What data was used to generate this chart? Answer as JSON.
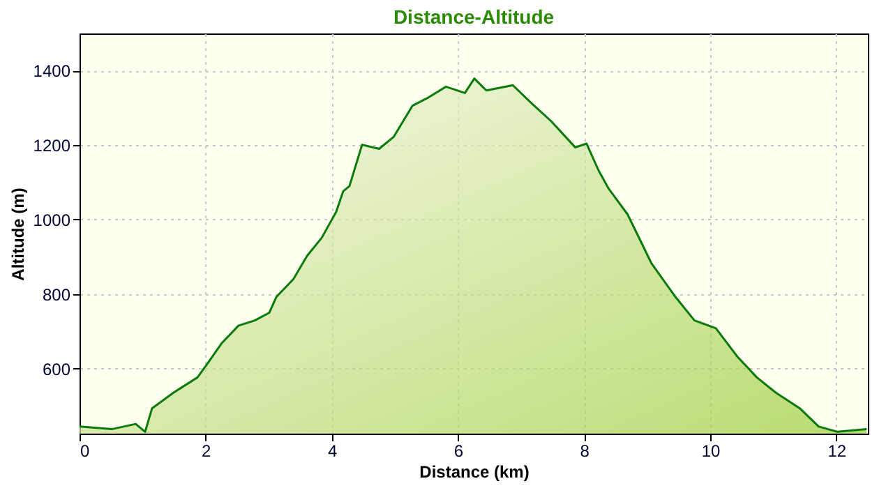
{
  "chart_data": {
    "type": "area",
    "title": "Distance-Altitude",
    "xlabel": "Distance (km)",
    "ylabel": "Altitude (m)",
    "x": [
      0,
      0.51,
      0.89,
      1.04,
      1.15,
      1.49,
      1.87,
      2.02,
      2.25,
      2.52,
      2.78,
      3.01,
      3.12,
      3.39,
      3.61,
      3.84,
      4.07,
      4.18,
      4.28,
      4.48,
      4.75,
      4.98,
      5.28,
      5.51,
      5.81,
      6.11,
      6.26,
      6.45,
      6.87,
      7.17,
      7.48,
      7.86,
      8.04,
      8.23,
      8.39,
      8.69,
      9.07,
      9.45,
      9.75,
      10.09,
      10.43,
      10.74,
      11.04,
      11.42,
      11.72,
      12.02,
      12.48
    ],
    "series": [
      {
        "color": "#0a7a0a",
        "values": [
          444,
          437,
          451,
          430,
          493,
          535,
          576,
          611,
          667,
          715,
          729,
          750,
          792,
          840,
          903,
          951,
          1021,
          1076,
          1090,
          1201,
          1190,
          1222,
          1306,
          1326,
          1357,
          1340,
          1379,
          1347,
          1361,
          1312,
          1264,
          1194,
          1204,
          1132,
          1083,
          1014,
          882,
          792,
          729,
          708,
          632,
          576,
          535,
          493,
          444,
          430,
          437
        ]
      }
    ],
    "xlim": [
      0,
      12.5
    ],
    "xticks": [
      0,
      2,
      4,
      6,
      8,
      10,
      12
    ],
    "ylim": [
      425,
      1500
    ],
    "yticks": [
      600,
      800,
      1000,
      1200,
      1400
    ],
    "grid": true
  }
}
